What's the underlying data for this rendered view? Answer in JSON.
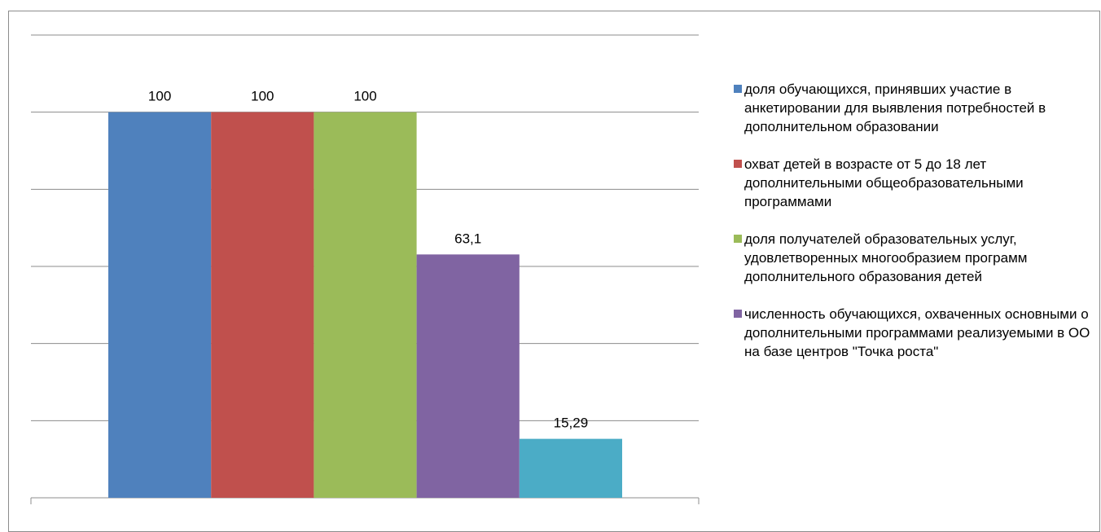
{
  "chart_data": {
    "type": "bar",
    "title": "",
    "xlabel": "",
    "ylabel": "",
    "ylim": [
      0,
      120
    ],
    "grid": true,
    "legend_position": "right",
    "series": [
      {
        "name": "доля обучающихся, принявших участие в анкетировании для выявления потребностей в дополнительном образовании",
        "value": 100,
        "label": "100",
        "color": "#4f81bd",
        "in_legend": true
      },
      {
        "name": "охват детей в возрасте от 5 до 18 лет дополнительными общеобразовательными программами",
        "value": 100,
        "label": "100",
        "color": "#c0504d",
        "in_legend": true
      },
      {
        "name": "доля получателей образовательных услуг, удовлетворенных многообразием программ дополнительного образования детей",
        "value": 100,
        "label": "100",
        "color": "#9bbb59",
        "in_legend": true
      },
      {
        "name": "численность обучающихся, охваченных основными о дополнительными программами реализуемыми в ОО на базе центров \"Точка роста\"",
        "value": 63.1,
        "label": "63,1",
        "color": "#8064a2",
        "in_legend": true
      },
      {
        "name": "",
        "value": 15.29,
        "label": "15,29",
        "color": "#4bacc6",
        "in_legend": false
      }
    ]
  }
}
